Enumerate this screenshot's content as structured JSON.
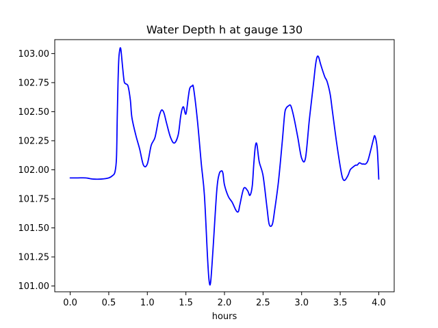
{
  "chart_data": {
    "type": "line",
    "title": "Water Depth h at gauge 130",
    "xlabel": "hours",
    "ylabel": "",
    "xlim": [
      -0.2,
      4.2
    ],
    "ylim": [
      100.95,
      103.12
    ],
    "grid": false,
    "x_ticks": [
      0.0,
      0.5,
      1.0,
      1.5,
      2.0,
      2.5,
      3.0,
      3.5,
      4.0
    ],
    "x_tick_labels": [
      "0.0",
      "0.5",
      "1.0",
      "1.5",
      "2.0",
      "2.5",
      "3.0",
      "3.5",
      "4.0"
    ],
    "y_ticks": [
      101.0,
      101.25,
      101.5,
      101.75,
      102.0,
      102.25,
      102.5,
      102.75,
      103.0
    ],
    "y_tick_labels": [
      "101.00",
      "101.25",
      "101.50",
      "101.75",
      "102.00",
      "102.25",
      "102.50",
      "102.75",
      "103.00"
    ],
    "series": [
      {
        "color": "#0000ff",
        "x": [
          0.0,
          0.1,
          0.2,
          0.3,
          0.4,
          0.5,
          0.55,
          0.58,
          0.6,
          0.61,
          0.62,
          0.63,
          0.64,
          0.65,
          0.66,
          0.68,
          0.7,
          0.72,
          0.75,
          0.78,
          0.8,
          0.85,
          0.9,
          0.95,
          1.0,
          1.05,
          1.1,
          1.15,
          1.18,
          1.2,
          1.22,
          1.25,
          1.3,
          1.35,
          1.4,
          1.43,
          1.45,
          1.47,
          1.5,
          1.53,
          1.55,
          1.58,
          1.6,
          1.65,
          1.7,
          1.74,
          1.78,
          1.8,
          1.82,
          1.85,
          1.9,
          1.93,
          1.96,
          1.98,
          2.0,
          2.05,
          2.1,
          2.15,
          2.18,
          2.2,
          2.25,
          2.3,
          2.33,
          2.36,
          2.38,
          2.4,
          2.42,
          2.45,
          2.5,
          2.55,
          2.58,
          2.62,
          2.65,
          2.7,
          2.75,
          2.78,
          2.8,
          2.83,
          2.86,
          2.9,
          2.95,
          3.0,
          3.05,
          3.1,
          3.15,
          3.18,
          3.2,
          3.22,
          3.25,
          3.3,
          3.33,
          3.37,
          3.4,
          3.45,
          3.5,
          3.53,
          3.56,
          3.6,
          3.63,
          3.66,
          3.7,
          3.72,
          3.75,
          3.78,
          3.8,
          3.83,
          3.86,
          3.9,
          3.93,
          3.95,
          3.98,
          4.0
        ],
        "y": [
          101.93,
          101.93,
          101.93,
          101.92,
          101.92,
          101.93,
          101.95,
          101.98,
          102.1,
          102.45,
          102.75,
          102.95,
          103.02,
          103.05,
          103.02,
          102.88,
          102.76,
          102.74,
          102.72,
          102.6,
          102.45,
          102.3,
          102.18,
          102.04,
          102.05,
          102.21,
          102.28,
          102.45,
          102.51,
          102.51,
          102.48,
          102.4,
          102.28,
          102.23,
          102.3,
          102.45,
          102.52,
          102.54,
          102.48,
          102.62,
          102.7,
          102.72,
          102.7,
          102.42,
          102.05,
          101.78,
          101.25,
          101.05,
          101.03,
          101.3,
          101.82,
          101.96,
          101.99,
          101.97,
          101.87,
          101.77,
          101.72,
          101.65,
          101.64,
          101.7,
          101.84,
          101.82,
          101.78,
          101.86,
          102.05,
          102.2,
          102.22,
          102.07,
          101.95,
          101.68,
          101.53,
          101.53,
          101.65,
          101.9,
          102.25,
          102.48,
          102.53,
          102.55,
          102.55,
          102.45,
          102.28,
          102.1,
          102.1,
          102.43,
          102.72,
          102.9,
          102.97,
          102.97,
          102.9,
          102.8,
          102.76,
          102.65,
          102.5,
          102.25,
          102.03,
          101.93,
          101.91,
          101.95,
          102.0,
          102.02,
          102.04,
          102.04,
          102.06,
          102.05,
          102.05,
          102.05,
          102.08,
          102.18,
          102.26,
          102.29,
          102.18,
          101.92
        ]
      }
    ]
  }
}
